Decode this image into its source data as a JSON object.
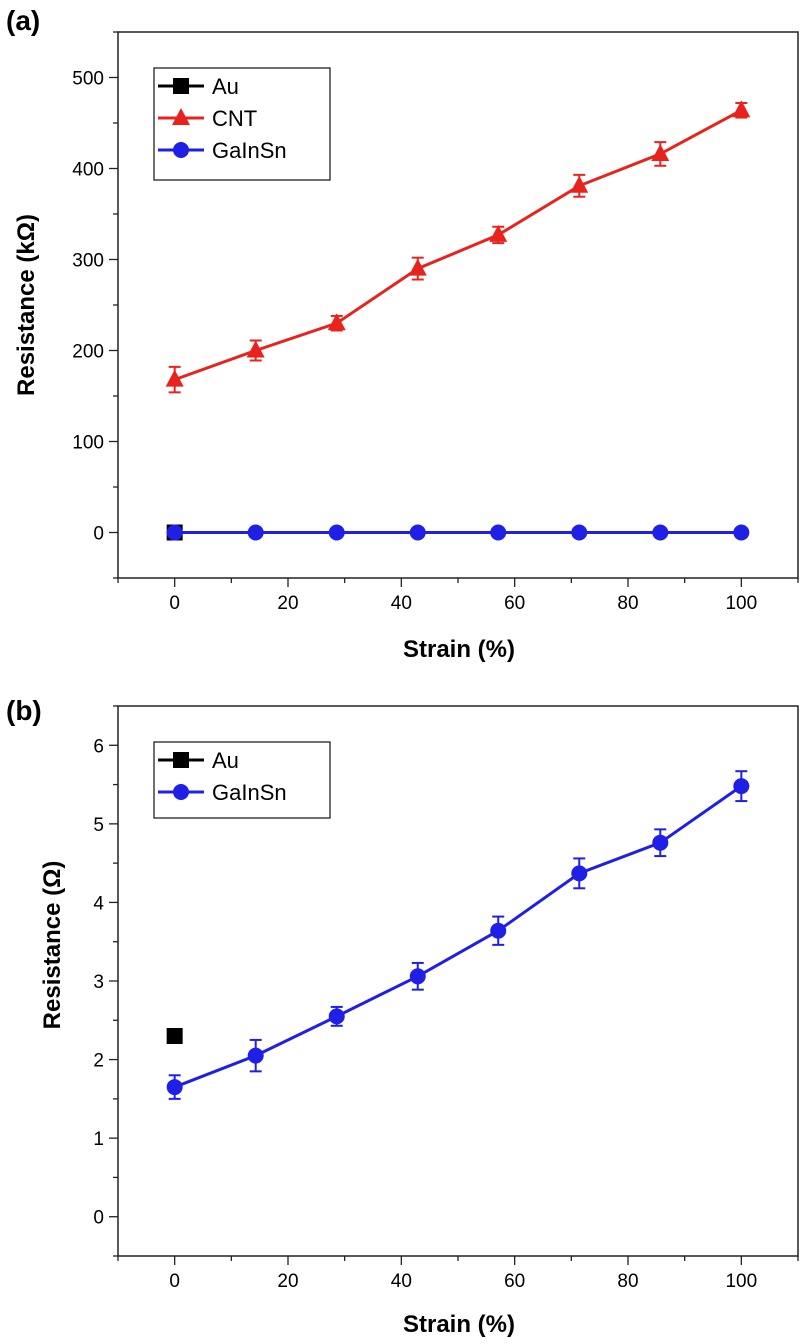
{
  "chart_data": [
    {
      "panel_label": "(a)",
      "type": "line",
      "xlabel": "Strain (%)",
      "ylabel": "Resistance (kΩ)",
      "xlim": [
        -10,
        110
      ],
      "ylim": [
        -50,
        550
      ],
      "xticks": [
        0,
        20,
        40,
        60,
        80,
        100
      ],
      "yticks": [
        0,
        100,
        200,
        300,
        400,
        500
      ],
      "legend_position": "top-left",
      "legend": [
        "Au",
        "CNT",
        "GaInSn"
      ],
      "colors": {
        "Au": "#000000",
        "CNT": "#e8231e",
        "GaInSn": "#1f1fe6"
      },
      "series": [
        {
          "name": "Au",
          "marker": "square",
          "x": [
            0
          ],
          "y": [
            0
          ],
          "err": [
            0
          ]
        },
        {
          "name": "CNT",
          "marker": "triangle",
          "x": [
            0,
            14.3,
            28.6,
            42.9,
            57.1,
            71.4,
            85.7,
            100
          ],
          "y": [
            168,
            200,
            230,
            290,
            327,
            381,
            416,
            464
          ],
          "err": [
            14,
            11,
            8,
            12,
            9,
            12,
            13,
            8
          ]
        },
        {
          "name": "GaInSn",
          "marker": "circle",
          "x": [
            0,
            14.3,
            28.6,
            42.9,
            57.1,
            71.4,
            85.7,
            100
          ],
          "y": [
            0,
            0,
            0,
            0,
            0,
            0,
            0,
            0
          ],
          "err": [
            0,
            0,
            0,
            0,
            0,
            0,
            0,
            0
          ]
        }
      ]
    },
    {
      "panel_label": "(b)",
      "type": "line",
      "xlabel": "Strain (%)",
      "ylabel": "Resistance (Ω)",
      "xlim": [
        -10,
        110
      ],
      "ylim": [
        -0.5,
        6.5
      ],
      "xticks": [
        0,
        20,
        40,
        60,
        80,
        100
      ],
      "yticks": [
        0,
        1,
        2,
        3,
        4,
        5,
        6
      ],
      "legend_position": "top-left",
      "legend": [
        "Au",
        "GaInSn"
      ],
      "colors": {
        "Au": "#000000",
        "GaInSn": "#1f1fe6"
      },
      "series": [
        {
          "name": "Au",
          "marker": "square",
          "x": [
            0
          ],
          "y": [
            2.3
          ],
          "err": [
            0.08
          ]
        },
        {
          "name": "GaInSn",
          "marker": "circle",
          "x": [
            0,
            14.3,
            28.6,
            42.9,
            57.1,
            71.4,
            85.7,
            100
          ],
          "y": [
            1.65,
            2.05,
            2.55,
            3.06,
            3.64,
            4.37,
            4.76,
            5.48
          ],
          "err": [
            0.15,
            0.2,
            0.12,
            0.17,
            0.18,
            0.19,
            0.17,
            0.19
          ]
        }
      ]
    }
  ]
}
